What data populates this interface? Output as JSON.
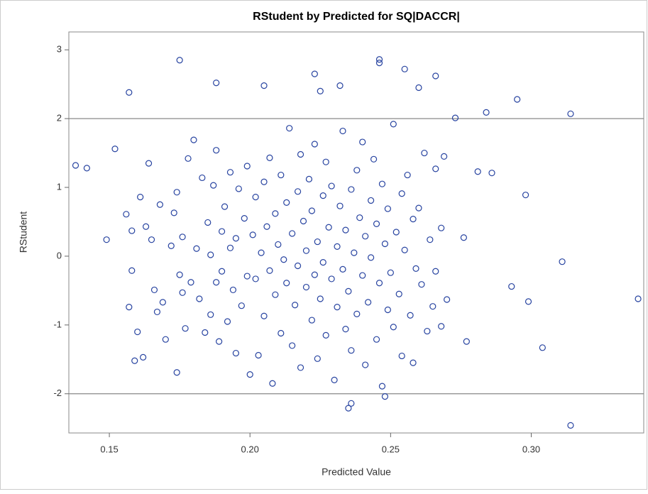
{
  "chart_data": {
    "type": "scatter",
    "title": "RStudent by Predicted for SQ|DACCR|",
    "xlabel": "Predicted Value",
    "ylabel": "RStudent",
    "color": "#2743a0",
    "xlim": [
      0.1356,
      0.34
    ],
    "ylim": [
      -2.57,
      3.26
    ],
    "xticks": [
      {
        "value": 0.15,
        "label": "0.15"
      },
      {
        "value": 0.2,
        "label": "0.20"
      },
      {
        "value": 0.25,
        "label": "0.25"
      },
      {
        "value": 0.3,
        "label": "0.30"
      }
    ],
    "yticks": [
      -2,
      -1,
      0,
      1,
      2,
      3
    ],
    "reference_lines": [
      2,
      -2
    ],
    "x": [
      0.138,
      0.142,
      0.149,
      0.152,
      0.157,
      0.175,
      0.188,
      0.205,
      0.223,
      0.225,
      0.232,
      0.246,
      0.246,
      0.255,
      0.266,
      0.26,
      0.295,
      0.284,
      0.314,
      0.338,
      0.311,
      0.314,
      0.304,
      0.299,
      0.298,
      0.293,
      0.286,
      0.281,
      0.276,
      0.277,
      0.273,
      0.235,
      0.248,
      0.236,
      0.174,
      0.156,
      0.158,
      0.159,
      0.16,
      0.157,
      0.158,
      0.161,
      0.162,
      0.163,
      0.164,
      0.165,
      0.166,
      0.167,
      0.168,
      0.169,
      0.17,
      0.172,
      0.173,
      0.174,
      0.175,
      0.176,
      0.176,
      0.177,
      0.178,
      0.179,
      0.18,
      0.181,
      0.182,
      0.183,
      0.184,
      0.185,
      0.186,
      0.186,
      0.187,
      0.188,
      0.188,
      0.189,
      0.19,
      0.19,
      0.191,
      0.192,
      0.193,
      0.193,
      0.194,
      0.195,
      0.195,
      0.196,
      0.197,
      0.198,
      0.199,
      0.199,
      0.2,
      0.201,
      0.202,
      0.202,
      0.203,
      0.204,
      0.205,
      0.205,
      0.206,
      0.207,
      0.207,
      0.208,
      0.209,
      0.209,
      0.21,
      0.211,
      0.211,
      0.212,
      0.213,
      0.213,
      0.214,
      0.215,
      0.215,
      0.216,
      0.217,
      0.217,
      0.218,
      0.218,
      0.219,
      0.22,
      0.22,
      0.221,
      0.222,
      0.222,
      0.223,
      0.223,
      0.224,
      0.224,
      0.225,
      0.226,
      0.226,
      0.227,
      0.227,
      0.228,
      0.229,
      0.229,
      0.23,
      0.231,
      0.231,
      0.232,
      0.233,
      0.233,
      0.234,
      0.234,
      0.235,
      0.236,
      0.236,
      0.237,
      0.238,
      0.238,
      0.239,
      0.24,
      0.24,
      0.241,
      0.241,
      0.242,
      0.243,
      0.243,
      0.244,
      0.245,
      0.245,
      0.246,
      0.247,
      0.247,
      0.248,
      0.249,
      0.249,
      0.25,
      0.251,
      0.251,
      0.252,
      0.253,
      0.254,
      0.254,
      0.255,
      0.256,
      0.257,
      0.258,
      0.258,
      0.259,
      0.26,
      0.261,
      0.262,
      0.263,
      0.264,
      0.265,
      0.266,
      0.266,
      0.268,
      0.268,
      0.269,
      0.27
    ],
    "y": [
      1.32,
      1.28,
      0.24,
      1.56,
      2.38,
      2.85,
      2.52,
      2.48,
      2.65,
      2.4,
      2.48,
      2.86,
      2.81,
      2.72,
      2.62,
      2.45,
      2.28,
      2.09,
      2.07,
      -0.62,
      -0.08,
      -2.46,
      -1.33,
      -0.66,
      0.89,
      -0.44,
      1.21,
      1.23,
      0.27,
      -1.24,
      2.01,
      -2.21,
      -2.04,
      -2.14,
      -1.69,
      0.61,
      -0.21,
      -1.52,
      -1.1,
      -0.74,
      0.37,
      0.86,
      -1.47,
      0.43,
      1.35,
      0.24,
      -0.49,
      -0.81,
      0.75,
      -0.67,
      -1.21,
      0.15,
      0.63,
      0.93,
      -0.27,
      0.28,
      -0.53,
      -1.05,
      1.42,
      -0.38,
      1.69,
      0.11,
      -0.62,
      1.14,
      -1.11,
      0.49,
      -0.85,
      0.02,
      1.03,
      -0.38,
      1.54,
      -1.24,
      0.36,
      -0.22,
      0.72,
      -0.95,
      0.12,
      1.22,
      -0.49,
      0.26,
      -1.41,
      0.98,
      -0.72,
      0.55,
      -0.29,
      1.31,
      -1.72,
      0.31,
      -0.33,
      0.86,
      -1.44,
      0.05,
      1.08,
      -0.87,
      0.43,
      -0.21,
      1.43,
      -1.85,
      0.62,
      -0.56,
      0.17,
      -1.12,
      1.18,
      -0.05,
      0.78,
      -0.39,
      1.86,
      -1.3,
      0.33,
      -0.71,
      0.94,
      -0.14,
      1.48,
      -1.62,
      0.51,
      -0.45,
      0.08,
      1.12,
      -0.93,
      0.66,
      -0.27,
      1.63,
      -1.49,
      0.21,
      -0.62,
      0.88,
      -0.09,
      1.37,
      -1.15,
      0.42,
      -0.33,
      1.02,
      -1.8,
      0.14,
      -0.74,
      0.73,
      -0.19,
      1.82,
      -1.06,
      0.38,
      -0.51,
      0.97,
      -1.37,
      0.05,
      1.25,
      -0.84,
      0.56,
      -0.28,
      1.66,
      -1.58,
      0.29,
      -0.67,
      0.81,
      -0.02,
      1.41,
      -1.21,
      0.47,
      -0.39,
      1.05,
      -1.89,
      0.18,
      -0.78,
      0.69,
      -0.24,
      1.92,
      -1.03,
      0.35,
      -0.55,
      0.91,
      -1.45,
      0.09,
      1.18,
      -0.86,
      0.54,
      -1.55,
      -0.18,
      0.7,
      -0.41,
      1.5,
      -1.09,
      0.24,
      -0.73,
      1.27,
      -0.22,
      0.41,
      -1.02,
      1.45,
      -0.63
    ]
  }
}
